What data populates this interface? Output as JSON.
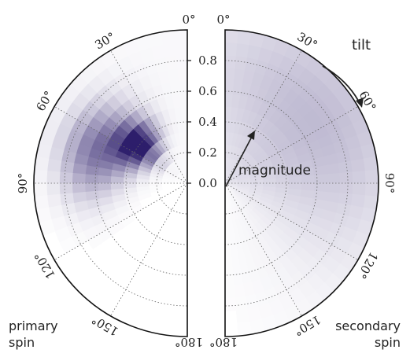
{
  "chart_data": {
    "type": "heatmap",
    "projection": "polar-half-disks",
    "panels": [
      {
        "name": "primary spin",
        "side": "left",
        "peak": {
          "tilt_deg": 52,
          "magnitude": 0.4,
          "density": 1.0
        },
        "angle_spread_deg": 14,
        "magnitude_spread": 0.1,
        "tail": {
          "tilt_deg": 70,
          "magnitude": 0.62,
          "density": 0.6
        }
      },
      {
        "name": "secondary spin",
        "side": "right",
        "peak": {
          "tilt_deg": 55,
          "magnitude": 0.75,
          "density": 0.18
        },
        "angle_spread_deg": 40,
        "magnitude_spread": 0.35,
        "tail": {
          "tilt_deg": 75,
          "magnitude": 0.4,
          "density": 0.1
        }
      }
    ],
    "angle_ticks": [
      "0°",
      "30°",
      "60°",
      "90°",
      "120°",
      "150°",
      "180°"
    ],
    "angle_tick_values": [
      0,
      30,
      60,
      90,
      120,
      150,
      180
    ],
    "radial_ticks": [
      "0.0",
      "0.2",
      "0.4",
      "0.6",
      "0.8"
    ],
    "radial_tick_values": [
      0.0,
      0.2,
      0.4,
      0.6,
      0.8
    ],
    "radial_range": [
      0,
      1
    ],
    "grid": true,
    "colormap": [
      "#ffffff",
      "#2d1e6b"
    ],
    "annotations": {
      "tilt": "tilt",
      "magnitude": "magnitude"
    },
    "labels": {
      "primary_spin_line1": "primary",
      "primary_spin_line2": "spin",
      "secondary_spin_line1": "secondary",
      "secondary_spin_line2": "spin"
    }
  }
}
